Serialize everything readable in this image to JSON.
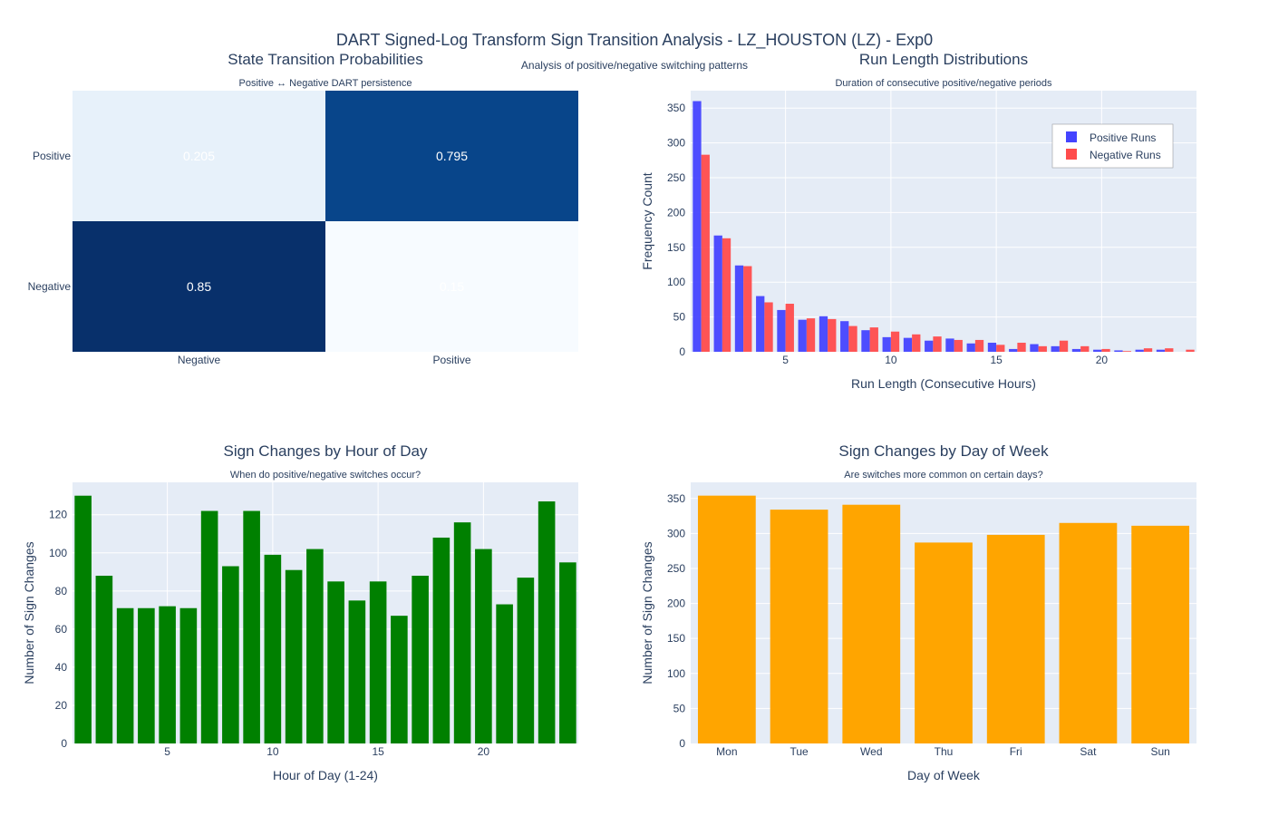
{
  "page": {
    "title": "DART Signed-Log Transform Sign Transition Analysis - LZ_HOUSTON (LZ) - Exp0",
    "subtitle": "Analysis of positive/negative switching patterns"
  },
  "colors": {
    "positive": "#4444ff",
    "negative": "#ff4c4c",
    "hour_bars": "#008000",
    "day_bars": "#ffa500",
    "plot_bg": "#e5ecf6",
    "text": "#2a3f5f"
  },
  "chart_data": [
    {
      "type": "heatmap",
      "title": "State Transition Probabilities",
      "subtitle": "Positive ↔ Negative DART persistence",
      "x_categories": [
        "Negative",
        "Positive"
      ],
      "y_categories": [
        "Negative",
        "Positive"
      ],
      "values": [
        [
          0.85,
          0.15
        ],
        [
          0.205,
          0.795
        ]
      ],
      "value_labels": [
        [
          "0.85",
          "0.15"
        ],
        [
          "0.205",
          "0.795"
        ]
      ],
      "colorscale": "Blues"
    },
    {
      "type": "bar",
      "title": "Run Length Distributions",
      "subtitle": "Duration of consecutive positive/negative periods",
      "xlabel": "Run Length (Consecutive Hours)",
      "ylabel": "Frequency Count",
      "x": [
        1,
        2,
        3,
        4,
        5,
        6,
        7,
        8,
        9,
        10,
        11,
        12,
        13,
        14,
        15,
        16,
        17,
        18,
        19,
        20,
        21,
        22,
        23,
        24
      ],
      "series": [
        {
          "name": "Positive Runs",
          "values": [
            360,
            167,
            124,
            80,
            60,
            46,
            51,
            44,
            31,
            21,
            20,
            16,
            19,
            12,
            13,
            4,
            11,
            8,
            4,
            3,
            2,
            3,
            3,
            0
          ]
        },
        {
          "name": "Negative Runs",
          "values": [
            283,
            163,
            123,
            71,
            69,
            48,
            47,
            37,
            35,
            29,
            25,
            22,
            17,
            17,
            10,
            13,
            8,
            16,
            8,
            4,
            1,
            5,
            5,
            3
          ]
        }
      ],
      "xlim": [
        0.5,
        24.5
      ],
      "ylim": [
        0,
        375
      ],
      "xticks": [
        5,
        10,
        15,
        20
      ],
      "yticks": [
        0,
        50,
        100,
        150,
        200,
        250,
        300,
        350
      ],
      "legend": "top-right"
    },
    {
      "type": "bar",
      "title": "Sign Changes by Hour of Day",
      "subtitle": "When do positive/negative switches occur?",
      "xlabel": "Hour of Day (1-24)",
      "ylabel": "Number of Sign Changes",
      "x": [
        1,
        2,
        3,
        4,
        5,
        6,
        7,
        8,
        9,
        10,
        11,
        12,
        13,
        14,
        15,
        16,
        17,
        18,
        19,
        20,
        21,
        22,
        23,
        24
      ],
      "values": [
        130,
        88,
        71,
        71,
        72,
        71,
        122,
        93,
        122,
        99,
        91,
        102,
        85,
        75,
        85,
        67,
        88,
        108,
        116,
        102,
        73,
        87,
        127,
        95
      ],
      "xlim": [
        0.5,
        24.5
      ],
      "ylim": [
        0,
        137
      ],
      "xticks": [
        5,
        10,
        15,
        20
      ],
      "yticks": [
        0,
        20,
        40,
        60,
        80,
        100,
        120
      ]
    },
    {
      "type": "bar",
      "title": "Sign Changes by Day of Week",
      "subtitle": "Are switches more common on certain days?",
      "xlabel": "Day of Week",
      "ylabel": "Number of Sign Changes",
      "categories": [
        "Mon",
        "Tue",
        "Wed",
        "Thu",
        "Fri",
        "Sat",
        "Sun"
      ],
      "values": [
        354,
        334,
        341,
        287,
        298,
        315,
        311
      ],
      "ylim": [
        0,
        373
      ],
      "yticks": [
        0,
        50,
        100,
        150,
        200,
        250,
        300,
        350
      ]
    }
  ]
}
